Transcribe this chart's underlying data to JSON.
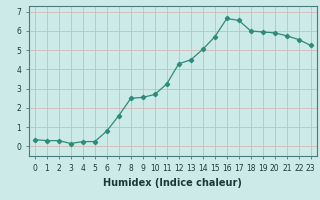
{
  "x": [
    0,
    1,
    2,
    3,
    4,
    5,
    6,
    7,
    8,
    9,
    10,
    11,
    12,
    13,
    14,
    15,
    16,
    17,
    18,
    19,
    20,
    21,
    22,
    23
  ],
  "y": [
    0.35,
    0.3,
    0.3,
    0.15,
    0.25,
    0.25,
    0.8,
    1.6,
    2.5,
    2.55,
    2.7,
    3.25,
    4.3,
    4.5,
    5.05,
    5.7,
    6.65,
    6.55,
    6.0,
    5.95,
    5.9,
    5.75,
    5.55,
    5.25
  ],
  "line_color": "#2e8b7a",
  "marker": "D",
  "marker_size": 2.2,
  "linewidth": 0.9,
  "xlabel": "Humidex (Indice chaleur)",
  "ylim": [
    -0.5,
    7.3
  ],
  "xlim": [
    -0.5,
    23.5
  ],
  "bg_color": "#cceae8",
  "grid_color": "#c0d0d0",
  "yticks": [
    0,
    1,
    2,
    3,
    4,
    5,
    6,
    7
  ],
  "xticks": [
    0,
    1,
    2,
    3,
    4,
    5,
    6,
    7,
    8,
    9,
    10,
    11,
    12,
    13,
    14,
    15,
    16,
    17,
    18,
    19,
    20,
    21,
    22,
    23
  ],
  "tick_fontsize": 5.5,
  "xlabel_fontsize": 7,
  "xlabel_fontweight": "bold",
  "text_color": "#1a3a3a"
}
